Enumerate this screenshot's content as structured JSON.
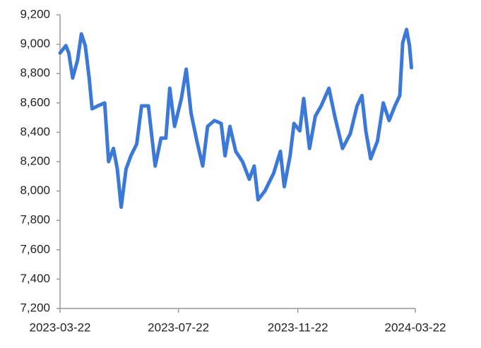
{
  "chart_data": {
    "type": "line",
    "x": [
      "2023-03-22",
      "2023-03-28",
      "2023-03-31",
      "2023-04-04",
      "2023-04-09",
      "2023-04-13",
      "2023-04-17",
      "2023-04-21",
      "2023-04-24",
      "2023-04-30",
      "2023-05-07",
      "2023-05-11",
      "2023-05-16",
      "2023-05-20",
      "2023-05-24",
      "2023-05-29",
      "2023-06-03",
      "2023-06-09",
      "2023-06-14",
      "2023-06-21",
      "2023-06-28",
      "2023-07-04",
      "2023-07-09",
      "2023-07-13",
      "2023-07-18",
      "2023-07-25",
      "2023-07-30",
      "2023-08-04",
      "2023-08-10",
      "2023-08-16",
      "2023-08-21",
      "2023-08-28",
      "2023-09-04",
      "2023-09-08",
      "2023-09-13",
      "2023-09-19",
      "2023-09-26",
      "2023-10-03",
      "2023-10-08",
      "2023-10-12",
      "2023-10-19",
      "2023-10-28",
      "2023-11-04",
      "2023-11-08",
      "2023-11-14",
      "2023-11-18",
      "2023-11-24",
      "2023-11-28",
      "2023-12-04",
      "2023-12-10",
      "2023-12-16",
      "2023-12-24",
      "2023-12-30",
      "2024-01-07",
      "2024-01-15",
      "2024-01-22",
      "2024-01-27",
      "2024-01-31",
      "2024-02-05",
      "2024-02-12",
      "2024-02-18",
      "2024-02-24",
      "2024-03-01",
      "2024-03-06",
      "2024-03-09",
      "2024-03-13",
      "2024-03-16",
      "2024-03-18"
    ],
    "series": [
      {
        "color": "#3b78d8",
        "values": [
          8940,
          8990,
          8940,
          8770,
          8890,
          9070,
          8990,
          8770,
          8560,
          8580,
          8600,
          8200,
          8290,
          8150,
          7890,
          8150,
          8240,
          8320,
          8580,
          8580,
          8170,
          8360,
          8360,
          8700,
          8440,
          8630,
          8830,
          8530,
          8340,
          8170,
          8440,
          8480,
          8460,
          8240,
          8440,
          8270,
          8200,
          8080,
          8170,
          7940,
          8000,
          8120,
          8270,
          8030,
          8240,
          8460,
          8410,
          8630,
          8290,
          8510,
          8580,
          8700,
          8510,
          8290,
          8390,
          8580,
          8650,
          8410,
          8220,
          8340,
          8600,
          8480,
          8580,
          8650,
          9010,
          9100,
          8990,
          8840
        ]
      }
    ],
    "xlim": [
      "2023-03-22",
      "2024-03-22"
    ],
    "xticks": [
      "2023-03-22",
      "2023-07-22",
      "2023-11-22",
      "2024-03-22"
    ],
    "ylim": [
      7200,
      9200
    ],
    "yticks": [
      {
        "value": 7200,
        "label": "7,200"
      },
      {
        "value": 7400,
        "label": "7,400"
      },
      {
        "value": 7600,
        "label": "7,600"
      },
      {
        "value": 7800,
        "label": "7,800"
      },
      {
        "value": 8000,
        "label": "8,000"
      },
      {
        "value": 8200,
        "label": "8,200"
      },
      {
        "value": 8400,
        "label": "8,400"
      },
      {
        "value": 8600,
        "label": "8,600"
      },
      {
        "value": 8800,
        "label": "8,800"
      },
      {
        "value": 9000,
        "label": "9,000"
      },
      {
        "value": 9200,
        "label": "9,200"
      }
    ],
    "grid": false
  }
}
